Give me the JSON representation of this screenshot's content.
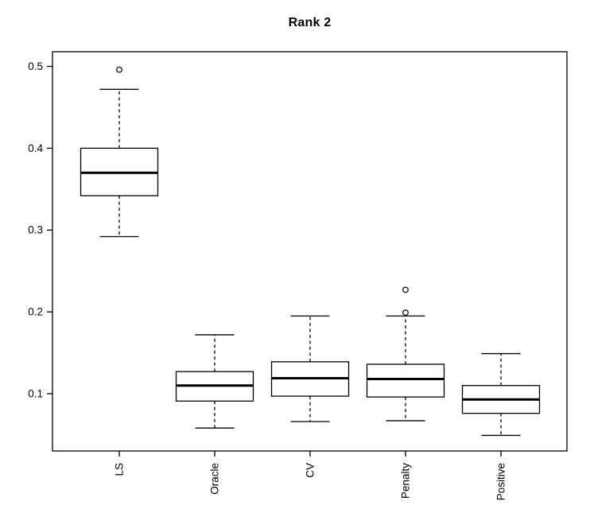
{
  "title": "Rank 2",
  "chart_data": {
    "type": "boxplot",
    "title": "Rank 2",
    "xlabel": "",
    "ylabel": "",
    "grid": false,
    "categories": [
      "LS",
      "Oracle",
      "CV",
      "Penalty",
      "Positive"
    ],
    "boxes": [
      {
        "label": "LS",
        "whisker_low": 0.292,
        "q1": 0.342,
        "median": 0.37,
        "q3": 0.4,
        "whisker_high": 0.472,
        "outliers": [
          0.496
        ]
      },
      {
        "label": "Oracle",
        "whisker_low": 0.058,
        "q1": 0.091,
        "median": 0.11,
        "q3": 0.127,
        "whisker_high": 0.172,
        "outliers": []
      },
      {
        "label": "CV",
        "whisker_low": 0.066,
        "q1": 0.097,
        "median": 0.119,
        "q3": 0.139,
        "whisker_high": 0.195,
        "outliers": []
      },
      {
        "label": "Penalty",
        "whisker_low": 0.067,
        "q1": 0.096,
        "median": 0.118,
        "q3": 0.136,
        "whisker_high": 0.195,
        "outliers": [
          0.199,
          0.227
        ]
      },
      {
        "label": "Positive",
        "whisker_low": 0.049,
        "q1": 0.076,
        "median": 0.093,
        "q3": 0.11,
        "whisker_high": 0.149,
        "outliers": []
      }
    ],
    "yticks": [
      0.1,
      0.2,
      0.3,
      0.4,
      0.5
    ],
    "ytick_labels": [
      "0.1",
      "0.2",
      "0.3",
      "0.4",
      "0.5"
    ],
    "ylim": [
      0.03,
      0.518
    ],
    "legend": null,
    "colors": {
      "line": "#000000",
      "box_fill": "#ffffff",
      "background": "#ffffff"
    }
  }
}
